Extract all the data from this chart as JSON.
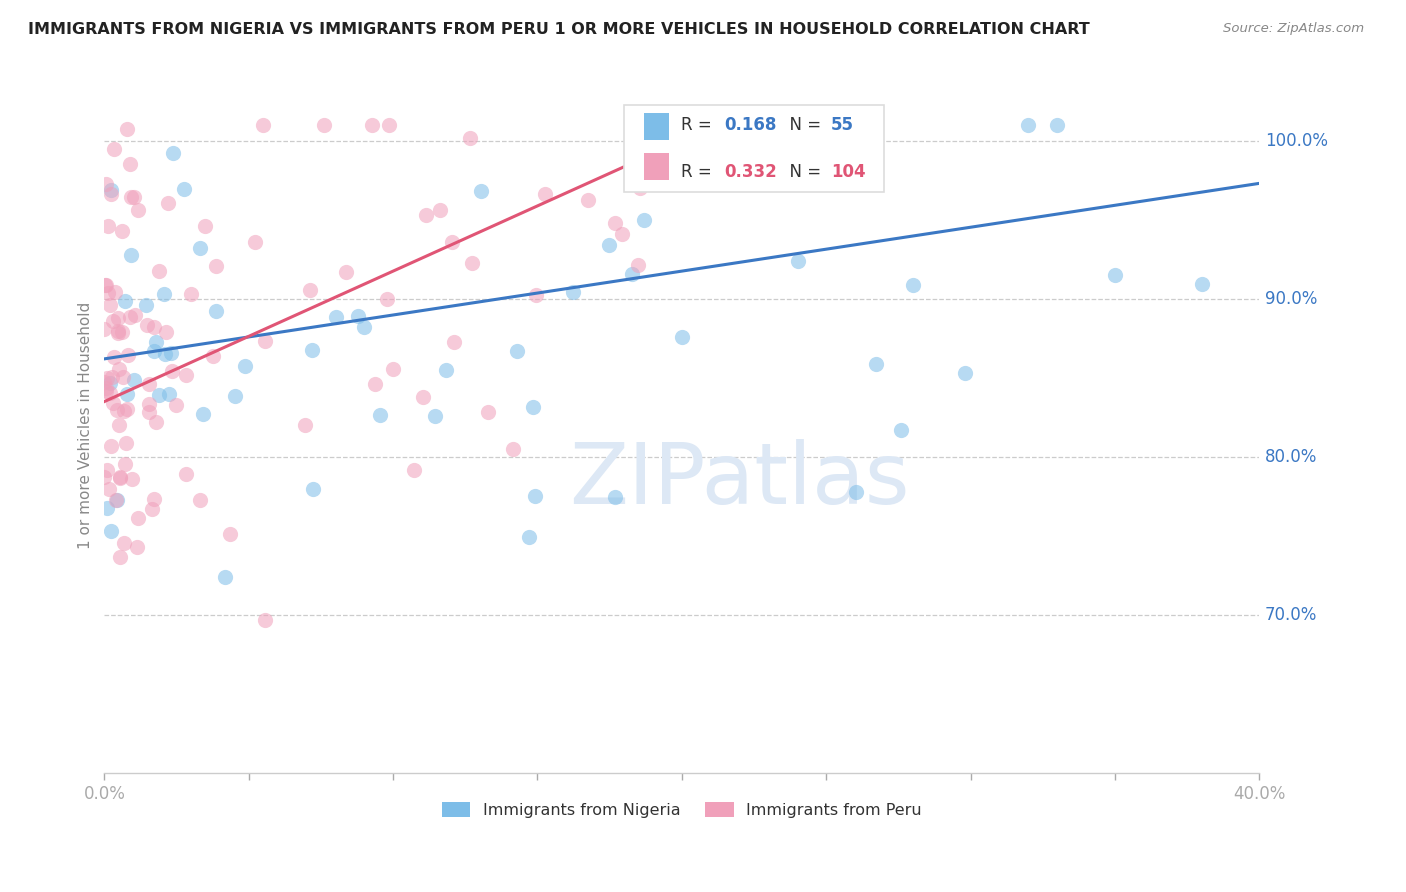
{
  "title": "IMMIGRANTS FROM NIGERIA VS IMMIGRANTS FROM PERU 1 OR MORE VEHICLES IN HOUSEHOLD CORRELATION CHART",
  "source": "Source: ZipAtlas.com",
  "yaxis_label": "1 or more Vehicles in Household",
  "series1_name": "Immigrants from Nigeria",
  "series2_name": "Immigrants from Peru",
  "series1_color": "#7dbde8",
  "series2_color": "#f0a0ba",
  "line1_color": "#3b78c4",
  "line2_color": "#e05575",
  "R1": 0.168,
  "N1": 55,
  "R2": 0.332,
  "N2": 104,
  "xlim": [
    0.0,
    0.4
  ],
  "ylim": [
    0.6,
    1.04
  ],
  "yticks": [
    1.0,
    0.9,
    0.8,
    0.7
  ],
  "ytick_labels": [
    "100.0%",
    "90.0%",
    "80.0%",
    "70.0%"
  ],
  "watermark": "ZIPatlas"
}
